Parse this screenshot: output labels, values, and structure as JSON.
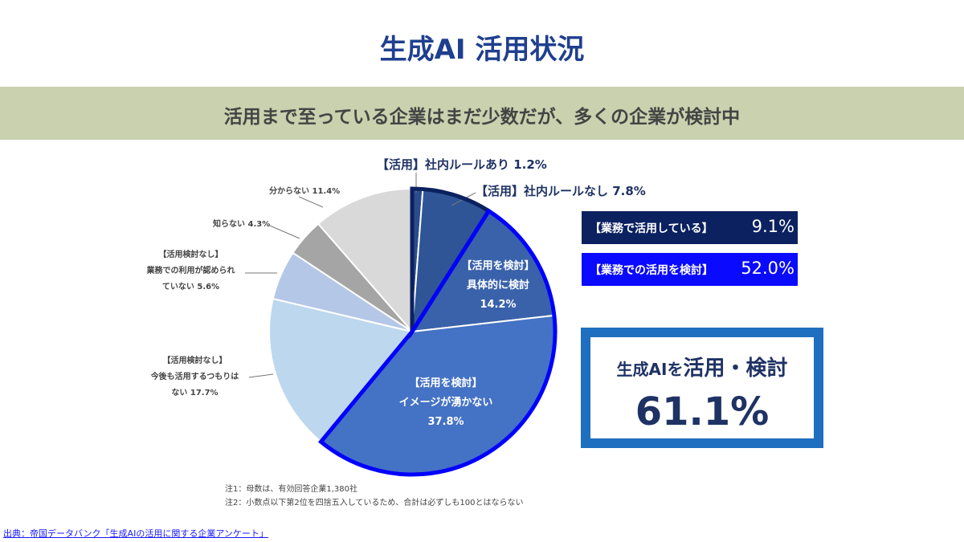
{
  "title": "生成AI 活用状況",
  "subtitle": "活用まで至っている企業はまだ少数だが、多くの企業が検討中",
  "chart_data": {
    "type": "pie",
    "start": "12 o'clock, clockwise",
    "slices": [
      {
        "label": "【活用】社内ルールあり",
        "value": 1.2,
        "color": "#2b4c8c"
      },
      {
        "label": "【活用】社内ルールなし",
        "value": 7.8,
        "color": "#2f5597"
      },
      {
        "label": "【活用を検討】具体的に検討",
        "value": 14.2,
        "color": "#3a62aa"
      },
      {
        "label": "【活用を検討】イメージが湧かない",
        "value": 37.8,
        "color": "#4472c4"
      },
      {
        "label": "【活用検討なし】今後も活用するつもりはない",
        "value": 17.7,
        "color": "#bdd7ee"
      },
      {
        "label": "【活用検討なし】業務での利用が認められていない",
        "value": 5.6,
        "color": "#b4c7e7"
      },
      {
        "label": "知らない",
        "value": 4.3,
        "color": "#a5a5a5"
      },
      {
        "label": "分からない",
        "value": 11.4,
        "color": "#d9d9d9"
      }
    ],
    "highlight_groups": [
      {
        "slices": [
          0,
          1
        ],
        "outline_color": "#0b2160"
      },
      {
        "slices": [
          2,
          3
        ],
        "outline_color": "#0000ff"
      }
    ]
  },
  "labels": {
    "s0": "【活用】社内ルールあり 1.2%",
    "s1": "【活用】社内ルールなし 7.8%",
    "s2a": "【活用を検討】",
    "s2b": "具体的に検討",
    "s2c": "14.2%",
    "s3a": "【活用を検討】",
    "s3b": "イメージが湧かない",
    "s3c": "37.8%",
    "s4a": "【活用検討なし】",
    "s4b": "今後も活用するつもりは",
    "s4c": "ない 17.7%",
    "s5a": "【活用検討なし】",
    "s5b": "業務での利用が認められ",
    "s5c": "ていない 5.6%",
    "s6": "知らない 4.3%",
    "s7": "分からない 11.4%"
  },
  "summary": {
    "using_label": "【業務で活用している】",
    "using_value": "9.1%",
    "using_color": "#0b2160",
    "considering_label": "【業務での活用を検討】",
    "considering_value": "52.0%",
    "considering_color": "#0a0aff",
    "total_prefix": "生成AIを",
    "total_emph": "活用・検討",
    "total_value": "61.1%"
  },
  "notes": [
    "注1：母数は、有効回答企業1,380社",
    "注2：小数点以下第2位を四捨五入しているため、合計は必ずしも100とはならない"
  ],
  "source": "出典：帝国データバンク「生成AIの活用に関する企業アンケート」"
}
